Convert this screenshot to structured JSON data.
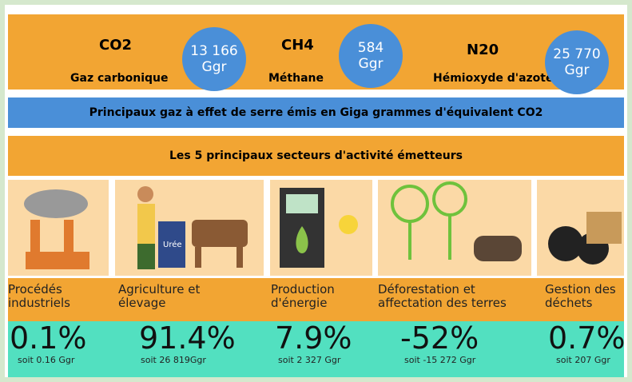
{
  "gases": [
    {
      "name": "CO2",
      "description": "Gaz carbonique",
      "amount": "13 166",
      "unit": "Ggr"
    },
    {
      "name": "CH4",
      "description": "Méthane",
      "amount": "584",
      "unit": "Ggr"
    },
    {
      "name": "N20",
      "description": "Hémioxyde d'azote",
      "amount": "25 770",
      "unit": "Ggr"
    }
  ],
  "banner": "Principaux gaz à effet de serre  émis en Giga grammes d'équivalent CO2",
  "sectors_title": "Les 5 principaux secteurs d'activité émetteurs",
  "icon_label": "Urée",
  "sectors": [
    {
      "name": [
        "Procédés",
        "industriels"
      ],
      "share": "0.1%",
      "detail": "soit 0.16 Ggr"
    },
    {
      "name": [
        "Agriculture et",
        "élevage"
      ],
      "share": "91.4%",
      "detail": "soit 26 819Ggr"
    },
    {
      "name": [
        "Production",
        "d'énergie"
      ],
      "share": "7.9%",
      "detail": "soit 2 327 Ggr"
    },
    {
      "name": [
        "Déforestation et",
        "affectation des terres"
      ],
      "share": "-52%",
      "detail": "soit -15 272 Ggr"
    },
    {
      "name": [
        "Gestion des",
        "déchets"
      ],
      "share": "0.7%",
      "detail": "soit 207 Ggr"
    }
  ]
}
